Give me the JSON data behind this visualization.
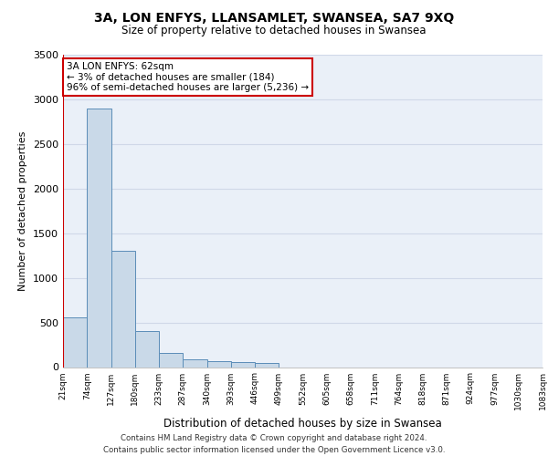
{
  "title1": "3A, LON ENFYS, LLANSAMLET, SWANSEA, SA7 9XQ",
  "title2": "Size of property relative to detached houses in Swansea",
  "xlabel": "Distribution of detached houses by size in Swansea",
  "ylabel": "Number of detached properties",
  "bin_labels": [
    "21sqm",
    "74sqm",
    "127sqm",
    "180sqm",
    "233sqm",
    "287sqm",
    "340sqm",
    "393sqm",
    "446sqm",
    "499sqm",
    "552sqm",
    "605sqm",
    "658sqm",
    "711sqm",
    "764sqm",
    "818sqm",
    "871sqm",
    "924sqm",
    "977sqm",
    "1030sqm",
    "1083sqm"
  ],
  "bar_heights": [
    560,
    2900,
    1300,
    400,
    155,
    90,
    65,
    55,
    45,
    0,
    0,
    0,
    0,
    0,
    0,
    0,
    0,
    0,
    0,
    0
  ],
  "bar_color": "#c9d9e8",
  "bar_edge_color": "#5b8db8",
  "grid_color": "#d0d8e8",
  "background_color": "#eaf0f8",
  "marker_color": "#cc0000",
  "annotation_text": "3A LON ENFYS: 62sqm\n← 3% of detached houses are smaller (184)\n96% of semi-detached houses are larger (5,236) →",
  "annotation_box_color": "#ffffff",
  "annotation_box_edge": "#cc0000",
  "footer1": "Contains HM Land Registry data © Crown copyright and database right 2024.",
  "footer2": "Contains public sector information licensed under the Open Government Licence v3.0.",
  "ylim": [
    0,
    3500
  ],
  "yticks": [
    0,
    500,
    1000,
    1500,
    2000,
    2500,
    3000,
    3500
  ],
  "title1_fontsize": 10,
  "title2_fontsize": 8.5
}
